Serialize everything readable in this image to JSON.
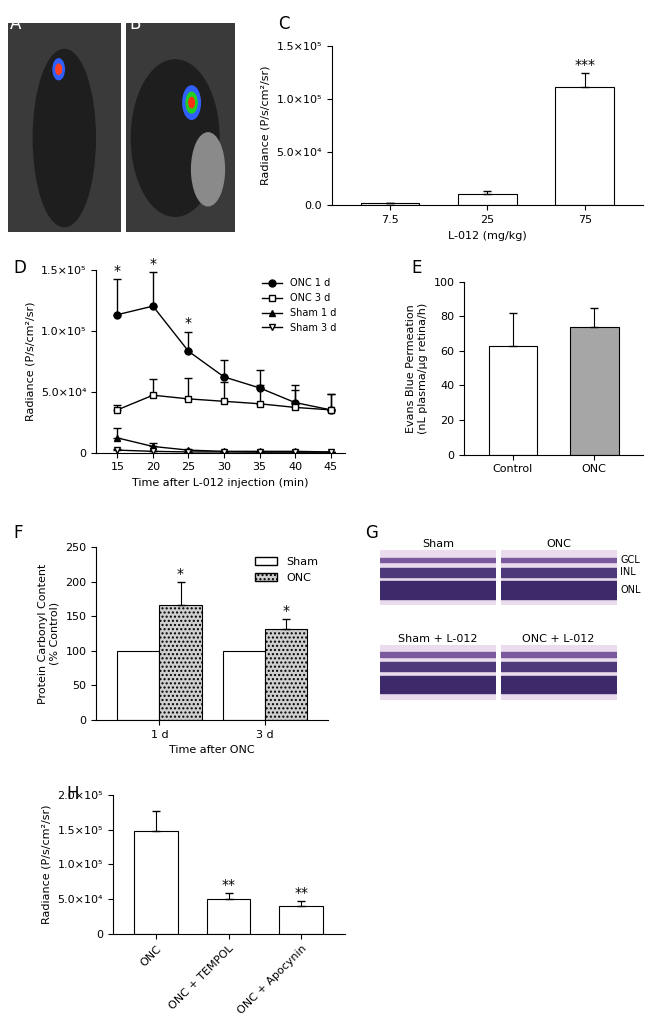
{
  "chart_data": [
    {
      "panel": "C",
      "type": "bar",
      "categories": [
        "7.5",
        "25",
        "75"
      ],
      "values": [
        2000,
        11000,
        111000
      ],
      "errors": [
        500,
        3000,
        13000
      ],
      "color": "#ffffff",
      "x_label": "L-012 (mg/kg)",
      "y_label": "Radiance (P/s/cm²/sr)",
      "ylim": [
        0,
        150000
      ],
      "yticks": [
        {
          "value": 0,
          "label": "0.0"
        },
        {
          "value": 50000,
          "label": "5.0×10⁴"
        },
        {
          "value": 100000,
          "label": "1.0×10⁵"
        },
        {
          "value": 150000,
          "label": "1.5×10⁵"
        }
      ],
      "annotations": [
        {
          "category": "75",
          "text": "***"
        }
      ]
    },
    {
      "panel": "D",
      "type": "line",
      "x": [
        15,
        20,
        25,
        30,
        35,
        40,
        45
      ],
      "series": [
        {
          "name": "ONC 1 d",
          "marker": "circle",
          "color": "#000000",
          "values": [
            113000,
            120000,
            83000,
            62000,
            53000,
            41000,
            35000
          ],
          "errors": [
            29000,
            28000,
            16000,
            14000,
            15000,
            14000,
            13000
          ]
        },
        {
          "name": "ONC 3 d",
          "marker": "square_open",
          "color": "#000000",
          "values": [
            35000,
            47000,
            44000,
            42000,
            40000,
            37000,
            35000
          ],
          "errors": [
            4000,
            13000,
            17000,
            16000,
            15000,
            14000,
            13000
          ]
        },
        {
          "name": "Sham 1 d",
          "marker": "triangle",
          "color": "#000000",
          "values": [
            12000,
            5000,
            2000,
            1000,
            1000,
            1000,
            500
          ],
          "errors": [
            8000,
            3000,
            1000,
            500,
            500,
            500,
            300
          ]
        },
        {
          "name": "Sham 3 d",
          "marker": "triangle_down_open",
          "color": "#000000",
          "values": [
            2000,
            1000,
            500,
            500,
            300,
            300,
            300
          ],
          "errors": [
            1000,
            500,
            300,
            300,
            200,
            200,
            200
          ]
        }
      ],
      "x_label": "Time after L-012 injection (min)",
      "y_label": "Radiance (P/s/cm²/sr)",
      "xlim": [
        12,
        47
      ],
      "xticks": [
        15,
        20,
        25,
        30,
        35,
        40,
        45
      ],
      "ylim": [
        0,
        150000
      ],
      "yticks": [
        0,
        {
          "value": 50000,
          "label": "5.0×10⁴"
        },
        {
          "value": 100000,
          "label": "1.0×10⁵"
        },
        {
          "value": 150000,
          "label": "1.5×10⁵"
        }
      ],
      "legend": "upper right",
      "annotations": [
        {
          "series": "ONC 1 d",
          "x": 15,
          "text": "*"
        },
        {
          "series": "ONC 1 d",
          "x": 20,
          "text": "*"
        },
        {
          "series": "ONC 1 d",
          "x": 25,
          "text": "*"
        }
      ]
    },
    {
      "panel": "E",
      "type": "bar",
      "categories": [
        "Control",
        "ONC"
      ],
      "values": [
        63,
        74
      ],
      "errors": [
        19,
        11
      ],
      "colors": [
        "#ffffff",
        "#a6a6a6"
      ],
      "y_label": "Evans Blue Permeation\n(nL plasma/µg retina/h)",
      "ylim": [
        0,
        100
      ],
      "yticks": [
        0,
        20,
        40,
        60,
        80,
        100
      ]
    },
    {
      "panel": "F",
      "type": "bar",
      "categories": [
        "1 d",
        "3 d"
      ],
      "series": [
        {
          "name": "Sham",
          "color": "#ffffff",
          "values": [
            100,
            100
          ]
        },
        {
          "name": "ONC",
          "color": "#cfcfcf",
          "values": [
            167,
            131
          ],
          "errors": [
            32,
            15
          ]
        }
      ],
      "x_label": "Time after ONC",
      "y_label": "Protein Carbonyl Content\n(% Control)",
      "ylim": [
        0,
        250
      ],
      "yticks": [
        0,
        50,
        100,
        150,
        200,
        250
      ],
      "legend": "upper right",
      "annotations": [
        {
          "series": "ONC",
          "category": "1 d",
          "text": "*"
        },
        {
          "series": "ONC",
          "category": "3 d",
          "text": "*"
        }
      ]
    },
    {
      "panel": "H",
      "type": "bar",
      "categories": [
        "ONC",
        "ONC + TEMPOL",
        "ONC + Apocynin"
      ],
      "values": [
        148000,
        50000,
        40000
      ],
      "errors": [
        30000,
        8000,
        7000
      ],
      "color": "#ffffff",
      "y_label": "Radiance (P/s/cm²/sr)",
      "ylim": [
        0,
        200000
      ],
      "yticks": [
        0,
        {
          "value": 50000,
          "label": "5.0×10⁴"
        },
        {
          "value": 100000,
          "label": "1.0×10⁵"
        },
        {
          "value": 150000,
          "label": "1.5×10⁵"
        },
        {
          "value": 200000,
          "label": "2.0×10⁵"
        }
      ],
      "annotations": [
        {
          "category": "ONC + TEMPOL",
          "text": "**"
        },
        {
          "category": "ONC + Apocynin",
          "text": "**"
        }
      ]
    }
  ],
  "images": [
    {
      "panel": "A"
    },
    {
      "panel": "B"
    },
    {
      "panel": "G",
      "titles": [
        "Sham",
        "ONC",
        "Sham + L-012",
        "ONC + L-012"
      ],
      "layers": [
        "GCL",
        "INL",
        "ONL"
      ]
    }
  ]
}
